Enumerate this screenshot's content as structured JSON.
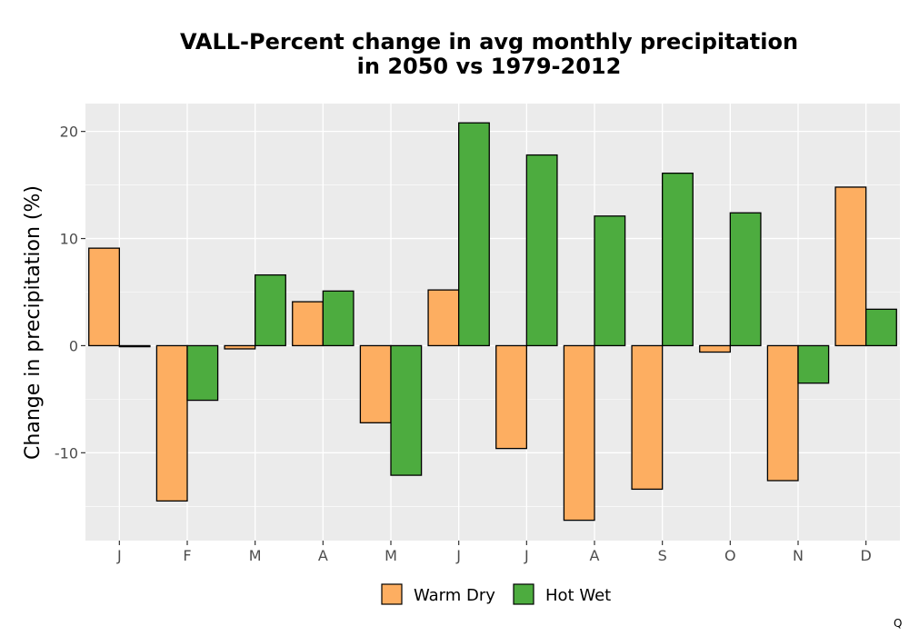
{
  "chart_data": {
    "type": "bar",
    "title_line1": "VALL-Percent change in avg monthly precipitation",
    "title_line2": "in 2050 vs 1979-2012",
    "xlabel": "",
    "ylabel": "Change in precipitation (%)",
    "categories": [
      "J",
      "F",
      "M",
      "A",
      "M",
      "J",
      "J",
      "A",
      "S",
      "O",
      "N",
      "D"
    ],
    "series": [
      {
        "name": "Warm Dry",
        "color": "#FDAE61",
        "values": [
          9.1,
          -14.5,
          -0.3,
          4.1,
          -7.2,
          5.2,
          -9.6,
          -16.3,
          -13.4,
          -0.6,
          -12.6,
          14.8
        ]
      },
      {
        "name": "Hot Wet",
        "color": "#4DAC3F",
        "values": [
          -0.1,
          -5.1,
          6.6,
          5.1,
          -12.1,
          20.8,
          17.8,
          12.1,
          16.1,
          12.4,
          -3.5,
          3.4
        ]
      }
    ],
    "ylim": [
      -18.2,
      22.6
    ],
    "yticks": [
      -10,
      0,
      10,
      20
    ],
    "ytick_labels": [
      "-10",
      "0",
      "10",
      "20"
    ],
    "grid": true,
    "panel_background": "#EBEBEB",
    "legend_position": "bottom"
  },
  "corner_mark": "Q"
}
